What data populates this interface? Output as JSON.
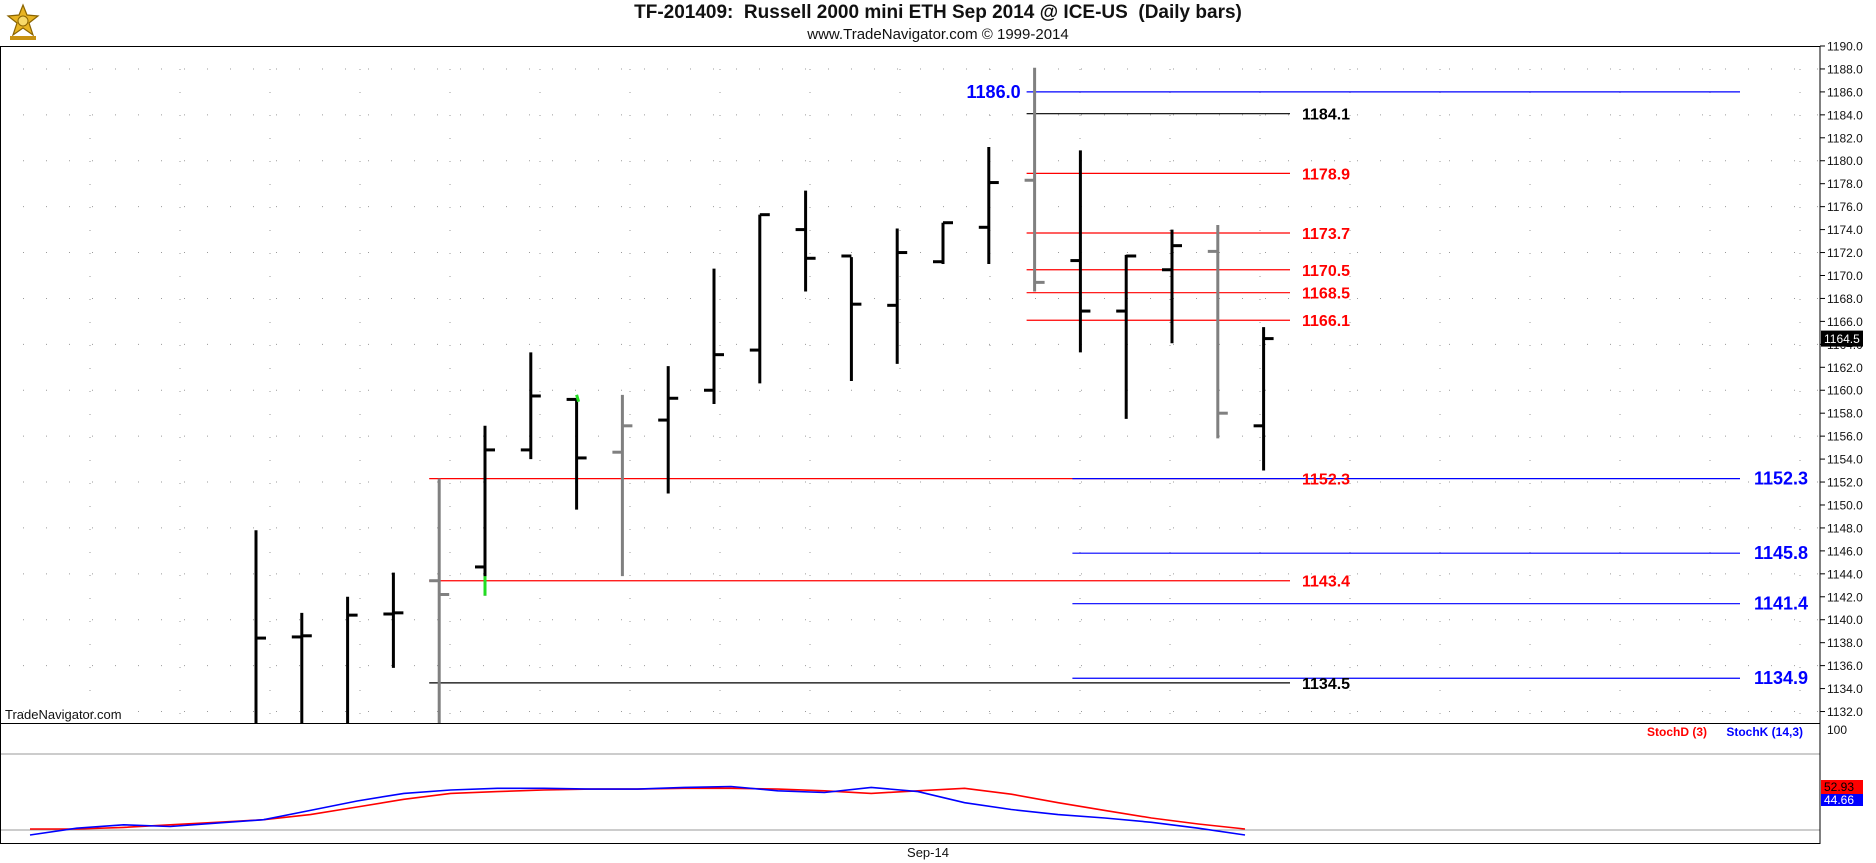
{
  "header": {
    "title": "TF-201409:  Russell 2000 mini ETH Sep 2014 @ ICE-US  (Daily bars)",
    "subtitle": "www.TradeNavigator.com © 1999-2014",
    "watermark": "TradeNavigator.com"
  },
  "colors": {
    "background": "#ffffff",
    "frame": "#000000",
    "bar_black": "#000000",
    "bar_gray": "#808080",
    "bar_green": "#22dd22",
    "level_red": "#ff0000",
    "level_blue": "#0000ff",
    "level_black": "#000000",
    "stochD": "#ff0000",
    "stochK": "#0000ff",
    "grid": "#9a9a9a"
  },
  "chart_data": [
    {
      "type": "ohlc",
      "title": "TF-201409:  Russell 2000 mini ETH Sep 2014 @ ICE-US  (Daily bars)",
      "ylim": [
        1131,
        1190
      ],
      "y_ticks": [
        "1190.0",
        "1188.0",
        "1186.0",
        "1184.0",
        "1182.0",
        "1180.0",
        "1178.0",
        "1176.0",
        "1174.0",
        "1172.0",
        "1170.0",
        "1168.0",
        "1166.0",
        "1164.0",
        "1162.0",
        "1160.0",
        "1158.0",
        "1156.0",
        "1154.0",
        "1152.0",
        "1150.0",
        "1148.0",
        "1146.0",
        "1144.0",
        "1142.0",
        "1140.0",
        "1138.0",
        "1136.0",
        "1134.0",
        "1132.0"
      ],
      "x_label": "Sep-14",
      "last_price": "1164.5",
      "grid": true,
      "bars": [
        {
          "high": 1147.8,
          "low": 1131.0,
          "open": null,
          "close": 1138.4,
          "color": "black"
        },
        {
          "high": 1140.6,
          "low": 1131.0,
          "open": 1138.5,
          "close": 1138.6,
          "color": "black"
        },
        {
          "high": 1142.0,
          "low": 1131.0,
          "open": null,
          "close": 1140.4,
          "color": "black"
        },
        {
          "high": 1144.1,
          "low": 1135.8,
          "open": 1140.5,
          "close": 1140.6,
          "color": "black"
        },
        {
          "high": 1152.3,
          "low": 1131.0,
          "open": 1143.4,
          "close": 1142.2,
          "color": "gray"
        },
        {
          "high": 1156.9,
          "low": 1142.1,
          "open": 1144.6,
          "close": 1154.8,
          "color": "black"
        },
        {
          "high": 1163.3,
          "low": 1154.0,
          "open": 1154.8,
          "close": 1159.5,
          "color": "black"
        },
        {
          "high": 1159.3,
          "low": 1149.6,
          "open": 1159.2,
          "close": 1154.1,
          "color": "black"
        },
        {
          "high": 1159.6,
          "low": 1143.8,
          "open": 1154.6,
          "close": 1156.9,
          "color": "gray"
        },
        {
          "high": 1162.1,
          "low": 1151.0,
          "open": 1157.4,
          "close": 1159.3,
          "color": "black"
        },
        {
          "high": 1170.6,
          "low": 1158.8,
          "open": 1160.0,
          "close": 1163.1,
          "color": "black"
        },
        {
          "high": 1175.3,
          "low": 1160.6,
          "open": 1163.5,
          "close": 1175.3,
          "color": "black"
        },
        {
          "high": 1177.4,
          "low": 1168.6,
          "open": 1174.0,
          "close": 1171.5,
          "color": "black"
        },
        {
          "high": 1171.6,
          "low": 1160.8,
          "open": 1171.7,
          "close": 1167.5,
          "color": "black"
        },
        {
          "high": 1174.1,
          "low": 1162.3,
          "open": 1167.4,
          "close": 1172.0,
          "color": "black"
        },
        {
          "high": 1174.6,
          "low": 1171.0,
          "open": 1171.2,
          "close": 1174.6,
          "color": "black"
        },
        {
          "high": 1181.2,
          "low": 1171.0,
          "open": 1174.2,
          "close": 1178.1,
          "color": "black"
        },
        {
          "high": 1188.1,
          "low": 1168.6,
          "open": 1178.3,
          "close": 1169.4,
          "color": "gray"
        },
        {
          "high": 1180.9,
          "low": 1163.3,
          "open": 1171.3,
          "close": 1166.9,
          "color": "black"
        },
        {
          "high": 1171.8,
          "low": 1157.5,
          "open": 1166.9,
          "close": 1171.7,
          "color": "black"
        },
        {
          "high": 1174.0,
          "low": 1164.1,
          "open": 1170.5,
          "close": 1172.6,
          "color": "black"
        },
        {
          "high": 1174.4,
          "low": 1155.8,
          "open": 1172.1,
          "close": 1158.0,
          "color": "gray"
        },
        {
          "high": 1165.5,
          "low": 1153.0,
          "open": 1156.9,
          "close": 1164.5,
          "color": "black"
        }
      ],
      "levels": [
        {
          "value": 1186.0,
          "label": "1186.0",
          "color": "blue",
          "start_bar": 17,
          "end_bar": 33,
          "label_side": "left"
        },
        {
          "value": 1184.1,
          "label": "1184.1",
          "color": "black",
          "start_bar": 17,
          "end_bar": 24,
          "label_side": "right"
        },
        {
          "value": 1178.9,
          "label": "1178.9",
          "color": "red",
          "start_bar": 17,
          "end_bar": 24,
          "label_side": "right"
        },
        {
          "value": 1173.7,
          "label": "1173.7",
          "color": "red",
          "start_bar": 17,
          "end_bar": 24,
          "label_side": "right"
        },
        {
          "value": 1170.5,
          "label": "1170.5",
          "color": "red",
          "start_bar": 17,
          "end_bar": 24,
          "label_side": "right"
        },
        {
          "value": 1168.5,
          "label": "1168.5",
          "color": "red",
          "start_bar": 17,
          "end_bar": 24,
          "label_side": "right"
        },
        {
          "value": 1166.1,
          "label": "1166.1",
          "color": "red",
          "start_bar": 17,
          "end_bar": 24,
          "label_side": "right"
        },
        {
          "value": 1152.3,
          "label": "1152.3",
          "color": "red",
          "start_bar": 4,
          "end_bar": 24,
          "label_side": "right"
        },
        {
          "value": 1152.3,
          "label": "1152.3",
          "color": "blue",
          "start_bar": 18,
          "end_bar": 33,
          "label_side": "far"
        },
        {
          "value": 1145.8,
          "label": "1145.8",
          "color": "blue",
          "start_bar": 18,
          "end_bar": 33,
          "label_side": "far"
        },
        {
          "value": 1143.4,
          "label": "1143.4",
          "color": "red",
          "start_bar": 4,
          "end_bar": 24,
          "label_side": "right"
        },
        {
          "value": 1141.4,
          "label": "1141.4",
          "color": "blue",
          "start_bar": 18,
          "end_bar": 33,
          "label_side": "far"
        },
        {
          "value": 1134.9,
          "label": "1134.9",
          "color": "blue",
          "start_bar": 18,
          "end_bar": 33,
          "label_side": "far"
        },
        {
          "value": 1134.5,
          "label": "1134.5",
          "color": "black",
          "start_bar": 4,
          "end_bar": 24,
          "label_side": "right"
        }
      ]
    },
    {
      "type": "line",
      "ylim": [
        0,
        100
      ],
      "y_tick": "100",
      "series": [
        {
          "name": "StochD (3)",
          "color": "red",
          "last_value": "52.93",
          "values": [
            7,
            7,
            9,
            12,
            15,
            18,
            24,
            33,
            42,
            49,
            51,
            53,
            54,
            54,
            55,
            55,
            54,
            52,
            49,
            52,
            55,
            48,
            38,
            29,
            20,
            13,
            7
          ]
        },
        {
          "name": "StochK (14,3)",
          "color": "blue",
          "last_value": "44.66",
          "values": [
            0,
            8,
            12,
            10,
            14,
            18,
            29,
            40,
            49,
            53,
            55,
            55,
            54,
            54,
            56,
            57,
            52,
            50,
            56,
            51,
            38,
            30,
            24,
            20,
            15,
            8,
            0
          ]
        }
      ]
    }
  ]
}
